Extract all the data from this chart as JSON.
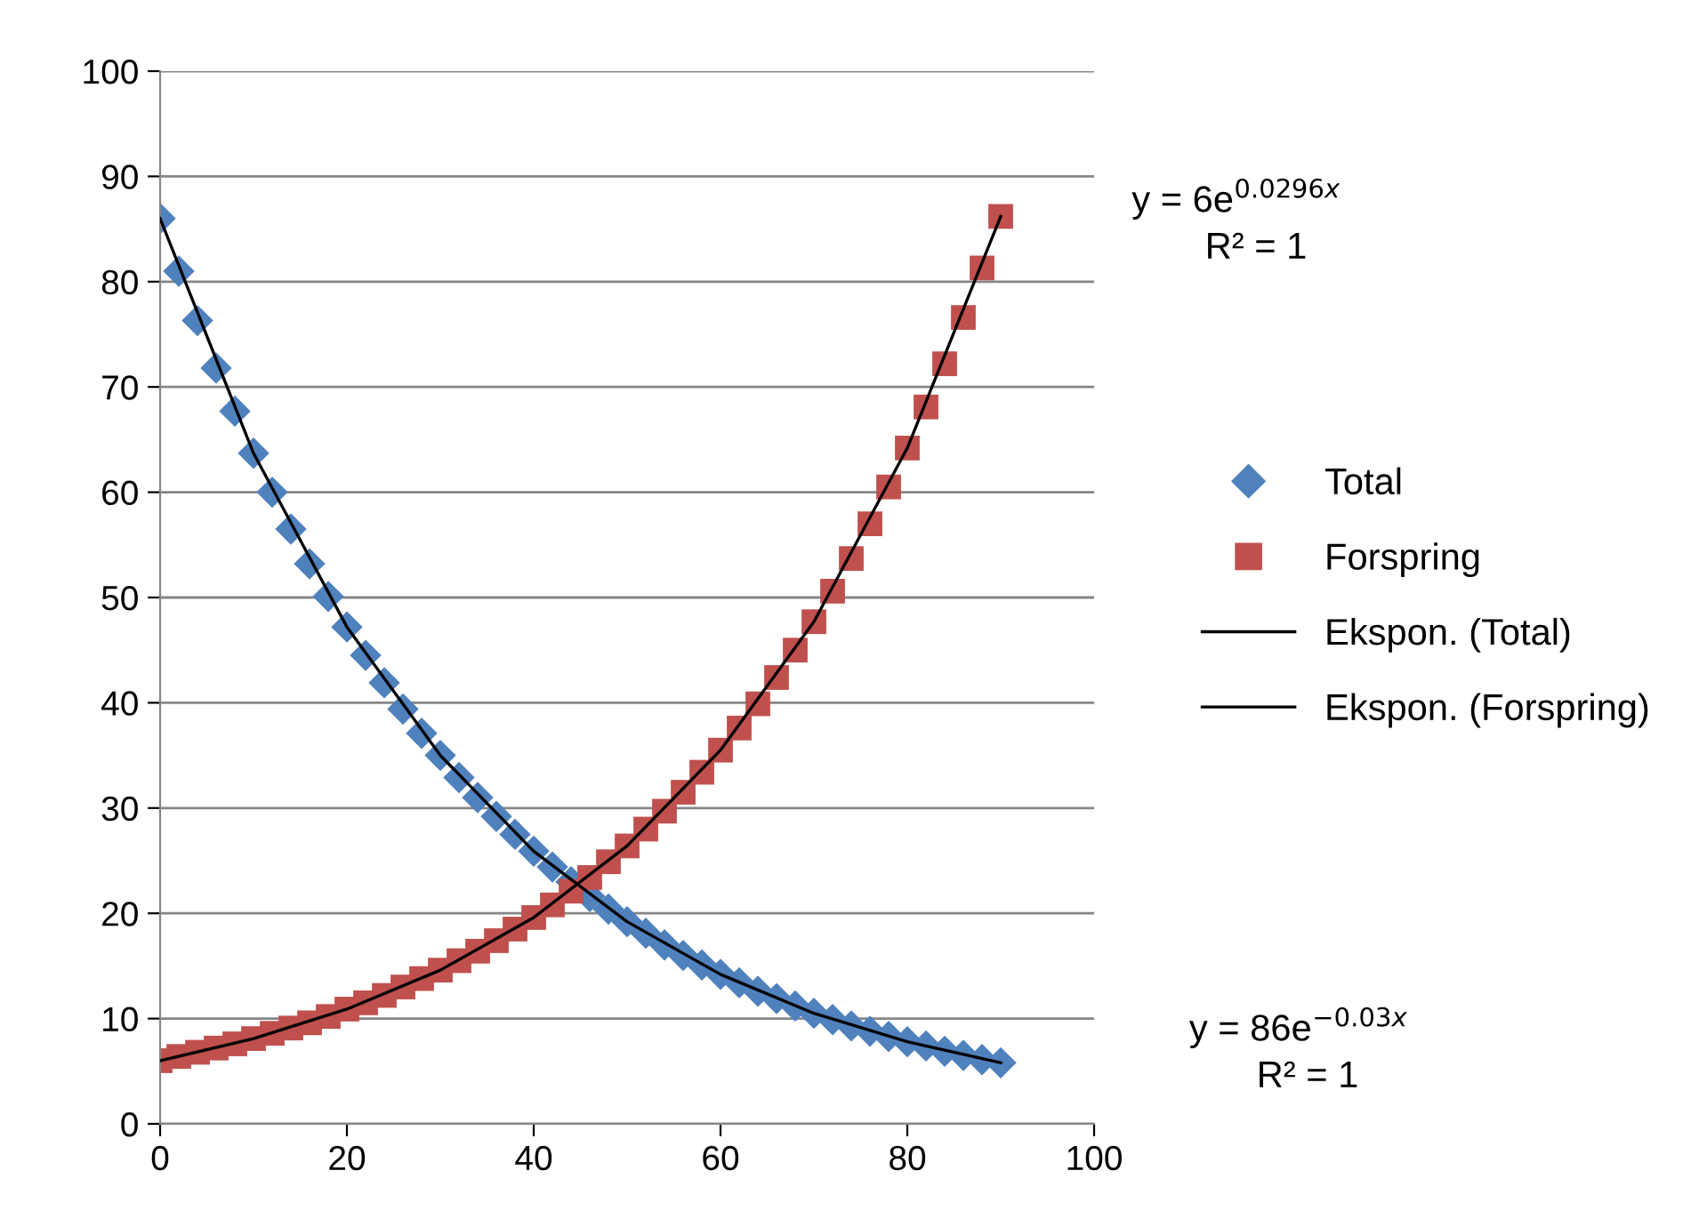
{
  "chart_data": {
    "type": "scatter",
    "xlim": [
      0,
      100
    ],
    "ylim": [
      0,
      100
    ],
    "xticks": [
      0,
      20,
      40,
      60,
      80,
      100
    ],
    "yticks": [
      0,
      10,
      20,
      30,
      40,
      50,
      60,
      70,
      80,
      90,
      100
    ],
    "grid": "y",
    "legend": "right",
    "series": [
      {
        "name": "Total",
        "marker": "diamond",
        "color": "#4f81bd",
        "x": [
          0,
          2,
          4,
          6,
          8,
          10,
          12,
          14,
          16,
          18,
          20,
          22,
          24,
          26,
          28,
          30,
          32,
          34,
          36,
          38,
          40,
          42,
          44,
          46,
          48,
          50,
          52,
          54,
          56,
          58,
          60,
          62,
          64,
          66,
          68,
          70,
          72,
          74,
          76,
          78,
          80,
          82,
          84,
          86,
          88,
          90
        ],
        "values": [
          86,
          81.0,
          76.3,
          71.8,
          67.7,
          63.7,
          60.0,
          56.5,
          53.2,
          50.1,
          47.2,
          44.5,
          41.9,
          39.4,
          37.1,
          35.0,
          32.9,
          31.0,
          29.2,
          27.5,
          25.9,
          24.4,
          23.0,
          21.6,
          20.4,
          19.2,
          18.1,
          17.0,
          16.0,
          15.1,
          14.2,
          13.4,
          12.6,
          11.9,
          11.2,
          10.5,
          9.9,
          9.3,
          8.8,
          8.3,
          7.8,
          7.4,
          6.9,
          6.5,
          6.1,
          5.8
        ]
      },
      {
        "name": "Forspring",
        "marker": "square",
        "color": "#c0504d",
        "x": [
          0,
          2,
          4,
          6,
          8,
          10,
          12,
          14,
          16,
          18,
          20,
          22,
          24,
          26,
          28,
          30,
          32,
          34,
          36,
          38,
          40,
          42,
          44,
          46,
          48,
          50,
          52,
          54,
          56,
          58,
          60,
          62,
          64,
          66,
          68,
          70,
          72,
          74,
          76,
          78,
          80,
          82,
          84,
          86,
          88,
          90
        ],
        "values": [
          6,
          6.4,
          6.8,
          7.2,
          7.6,
          8.1,
          8.6,
          9.1,
          9.6,
          10.2,
          10.9,
          11.5,
          12.2,
          13.0,
          13.8,
          14.6,
          15.5,
          16.4,
          17.4,
          18.5,
          19.6,
          20.8,
          22.1,
          23.4,
          24.9,
          26.4,
          28.0,
          29.7,
          31.5,
          33.4,
          35.5,
          37.6,
          39.9,
          42.4,
          45.0,
          47.7,
          50.6,
          53.7,
          57.0,
          60.5,
          64.2,
          68.1,
          72.2,
          76.6,
          81.3,
          86.2
        ]
      },
      {
        "name": "Ekspon. (Total)",
        "type": "line",
        "marker": "none",
        "line_style": "solid",
        "color": "#000000",
        "x": [
          0,
          10,
          20,
          30,
          40,
          50,
          60,
          70,
          80,
          90
        ],
        "values": [
          86,
          63.7,
          47.2,
          35.0,
          25.9,
          19.2,
          14.2,
          10.5,
          7.8,
          5.8
        ]
      },
      {
        "name": "Ekspon. (Forspring)",
        "type": "line",
        "marker": "none",
        "line_style": "solid",
        "color": "#000000",
        "x": [
          0,
          10,
          20,
          30,
          40,
          50,
          60,
          70,
          80,
          90
        ],
        "values": [
          6,
          8.1,
          10.9,
          14.6,
          19.6,
          26.4,
          35.5,
          47.7,
          64.2,
          86.2
        ]
      }
    ],
    "annotations": [
      "y = 6e$^{0.0296x}$",
      "R² = 1",
      "y = 86e$^{−0.03x}$",
      "R² = 1"
    ]
  }
}
